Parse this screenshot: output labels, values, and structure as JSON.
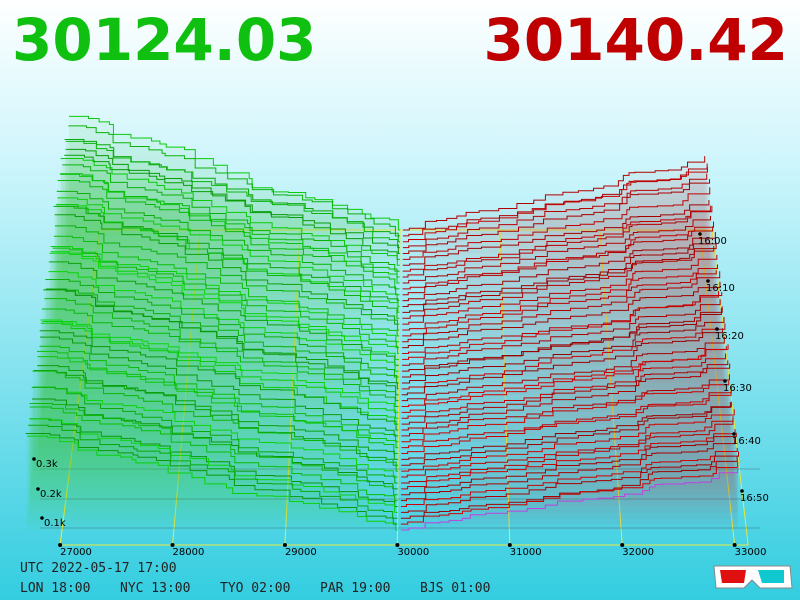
{
  "prices": {
    "bid": "30124.03",
    "ask": "30140.42"
  },
  "x_axis": {
    "ticks": [
      27000,
      28000,
      29000,
      30000,
      31000,
      32000,
      33000
    ]
  },
  "depth_labels": [
    "0.3k",
    "0.2k",
    "0.1k"
  ],
  "time_labels": [
    "16:00",
    "16:10",
    "16:20",
    "16:30",
    "16:40",
    "16:50"
  ],
  "footer": {
    "utc": "UTC 2022-05-17 17:00",
    "clocks": [
      "LON 18:00",
      "NYC 13:00",
      "TYO 02:00",
      "PAR 19:00",
      "BJS 01:00"
    ]
  }
}
